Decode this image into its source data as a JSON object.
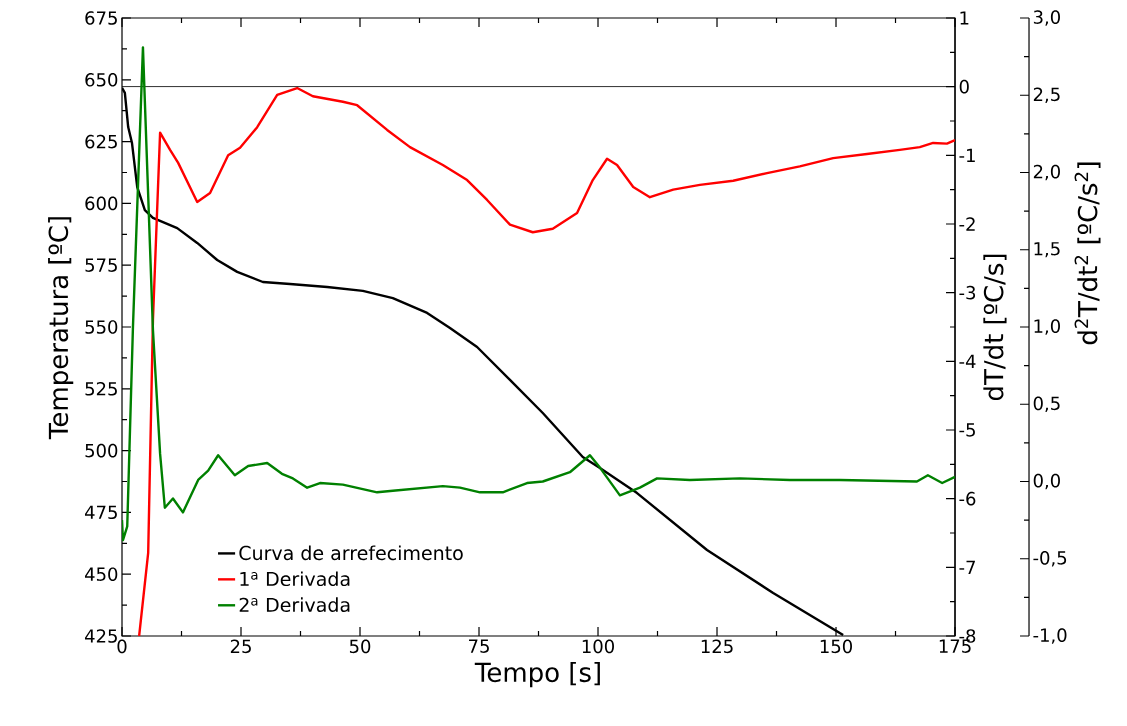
{
  "chart_data": {
    "type": "line",
    "xlabel": "Tempo [s]",
    "ylabel": "Temperatura [ºC]",
    "y2label": "dT/dt [ºC/s]",
    "y3label": "d$^{2}$T/dt$^{2}$ [ºC/s$^{2}$]",
    "xlim": [
      0,
      175
    ],
    "xticks": [
      0,
      25,
      50,
      75,
      100,
      125,
      150,
      175
    ],
    "ylim": [
      425,
      675
    ],
    "yticks": [
      425,
      450,
      475,
      500,
      525,
      550,
      575,
      600,
      625,
      650,
      675
    ],
    "y2lim": [
      -8,
      1
    ],
    "y2ticks": [
      -8,
      -7,
      -6,
      -5,
      -4,
      -3,
      -2,
      -1,
      0,
      1
    ],
    "y3lim": [
      -1,
      3
    ],
    "y3ticks": [
      {
        "value": -1,
        "label": "-1,0"
      },
      {
        "value": -0.5,
        "label": "-0,5"
      },
      {
        "value": 0,
        "label": "0,0"
      },
      {
        "value": 0.5,
        "label": "0,5"
      },
      {
        "value": 1,
        "label": "1,0"
      },
      {
        "value": 1.5,
        "label": "1,5"
      },
      {
        "value": 2,
        "label": "2,0"
      },
      {
        "value": 2.5,
        "label": "2,5"
      },
      {
        "value": 3,
        "label": "3,0"
      }
    ],
    "ref_lines": [
      {
        "axis": "y2",
        "value": 0,
        "color": "#000000"
      }
    ],
    "legend": "bottom left",
    "grid": false,
    "marker": "none",
    "line_style": "solid",
    "series": [
      {
        "name": "Curva de arrefecimento",
        "color": "#000000",
        "axis": "y",
        "x": [
          0,
          0.6,
          1.3,
          2.1,
          3.2,
          4.8,
          6.5,
          11.6,
          15.8,
          20.0,
          24.2,
          29.6,
          35.3,
          43.1,
          50.6,
          56.9,
          64.1,
          68.9,
          74.6,
          81.5,
          88.4,
          96.8,
          100.4,
          108.2,
          122.9,
          136.8,
          151.5
        ],
        "values": [
          646.7,
          644.7,
          630.9,
          624.4,
          606.6,
          597.3,
          594.1,
          590.0,
          584.0,
          577.1,
          572.3,
          568.2,
          567.4,
          566.2,
          564.6,
          561.7,
          555.7,
          549.6,
          541.9,
          528.6,
          515.2,
          497.4,
          493.0,
          482.8,
          459.8,
          442.4,
          425.4
        ]
      },
      {
        "name": "1$^{a}$ Derivada",
        "color": "#ff0000",
        "axis": "y2",
        "x": [
          3.6,
          5.5,
          6.5,
          8.0,
          10.1,
          11.8,
          15.8,
          18.5,
          22.3,
          24.8,
          28.4,
          32.6,
          36.8,
          40.1,
          46.4,
          49.4,
          55.7,
          60.5,
          67.4,
          72.5,
          76.7,
          81.5,
          86.3,
          90.5,
          95.6,
          98.9,
          101.9,
          104.0,
          107.4,
          110.9,
          115.8,
          121.4,
          128.4,
          135.5,
          142.4,
          149.4,
          156.5,
          163.4,
          167.6,
          170.4,
          173.3,
          175.0
        ],
        "values": [
          -8.0,
          -6.79,
          -3.4,
          -0.67,
          -0.92,
          -1.11,
          -1.68,
          -1.55,
          -1.0,
          -0.89,
          -0.59,
          -0.12,
          -0.02,
          -0.14,
          -0.22,
          -0.27,
          -0.63,
          -0.88,
          -1.14,
          -1.36,
          -1.65,
          -2.01,
          -2.12,
          -2.07,
          -1.84,
          -1.36,
          -1.05,
          -1.14,
          -1.46,
          -1.61,
          -1.5,
          -1.43,
          -1.37,
          -1.26,
          -1.16,
          -1.04,
          -0.98,
          -0.92,
          -0.88,
          -0.82,
          -0.83,
          -0.78
        ]
      },
      {
        "name": "2$^{a}$ Derivada",
        "color": "#008000",
        "axis": "y3",
        "x": [
          0,
          0.2,
          1.1,
          2.3,
          4.4,
          6.5,
          8.0,
          9.0,
          10.7,
          12.8,
          16.0,
          18.1,
          20.2,
          23.7,
          26.5,
          30.5,
          33.6,
          35.9,
          38.9,
          41.6,
          46.4,
          53.6,
          56.9,
          67.4,
          71.0,
          75.2,
          80.0,
          85.1,
          88.4,
          94.1,
          98.3,
          100.4,
          104.6,
          108.8,
          112.4,
          119.3,
          129.8,
          140.3,
          150.8,
          167.0,
          169.3,
          172.3,
          175.0
        ],
        "values": [
          -0.25,
          -0.38,
          -0.29,
          1.0,
          2.81,
          0.98,
          0.18,
          -0.17,
          -0.11,
          -0.2,
          0.01,
          0.07,
          0.17,
          0.04,
          0.1,
          0.12,
          0.05,
          0.02,
          -0.04,
          -0.01,
          -0.02,
          -0.07,
          -0.06,
          -0.03,
          -0.04,
          -0.07,
          -0.07,
          -0.01,
          0.0,
          0.06,
          0.17,
          0.09,
          -0.09,
          -0.04,
          0.02,
          0.01,
          0.02,
          0.01,
          0.01,
          0.0,
          0.04,
          -0.01,
          0.03
        ]
      }
    ]
  }
}
